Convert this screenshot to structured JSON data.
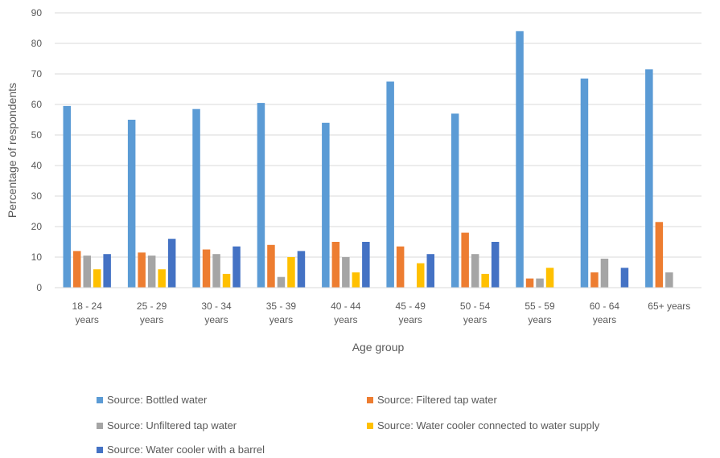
{
  "chart_data": {
    "type": "bar",
    "categories": [
      [
        "18 - 24",
        "years"
      ],
      [
        "25 - 29",
        "years"
      ],
      [
        "30 - 34",
        "years"
      ],
      [
        "35 - 39",
        "years"
      ],
      [
        "40 - 44",
        "years"
      ],
      [
        "45 - 49",
        "years"
      ],
      [
        "50 - 54",
        "years"
      ],
      [
        "55 - 59",
        "years"
      ],
      [
        "60 - 64",
        "years"
      ],
      [
        "65+ years"
      ]
    ],
    "series": [
      {
        "name": "Source: Bottled water",
        "color": "#5b9bd5",
        "values": [
          59.5,
          55,
          58.5,
          60.5,
          54,
          67.5,
          57,
          84,
          68.5,
          71.5
        ]
      },
      {
        "name": "Source: Filtered tap water",
        "color": "#ed7d31",
        "values": [
          12,
          11.5,
          12.5,
          14,
          15,
          13.5,
          18,
          3,
          5,
          21.5
        ]
      },
      {
        "name": "Source: Unfiltered tap water",
        "color": "#a5a5a5",
        "values": [
          10.5,
          10.5,
          11,
          3.5,
          10,
          0,
          11,
          3,
          9.5,
          5
        ]
      },
      {
        "name": "Source: Water cooler connected to water supply",
        "color": "#ffc000",
        "values": [
          6,
          6,
          4.5,
          10,
          5,
          8,
          4.5,
          6.5,
          0,
          0
        ]
      },
      {
        "name": "Source: Water cooler with a barrel",
        "color": "#4472c4",
        "values": [
          11,
          16,
          13.5,
          12,
          15,
          11,
          15,
          0,
          6.5,
          0
        ]
      }
    ],
    "xlabel": "Age group",
    "ylabel": "Percentage of respondents",
    "ylim": [
      0,
      90
    ],
    "yticks": [
      0,
      10,
      20,
      30,
      40,
      50,
      60,
      70,
      80,
      90
    ],
    "grid": true,
    "legend_position": "bottom"
  }
}
